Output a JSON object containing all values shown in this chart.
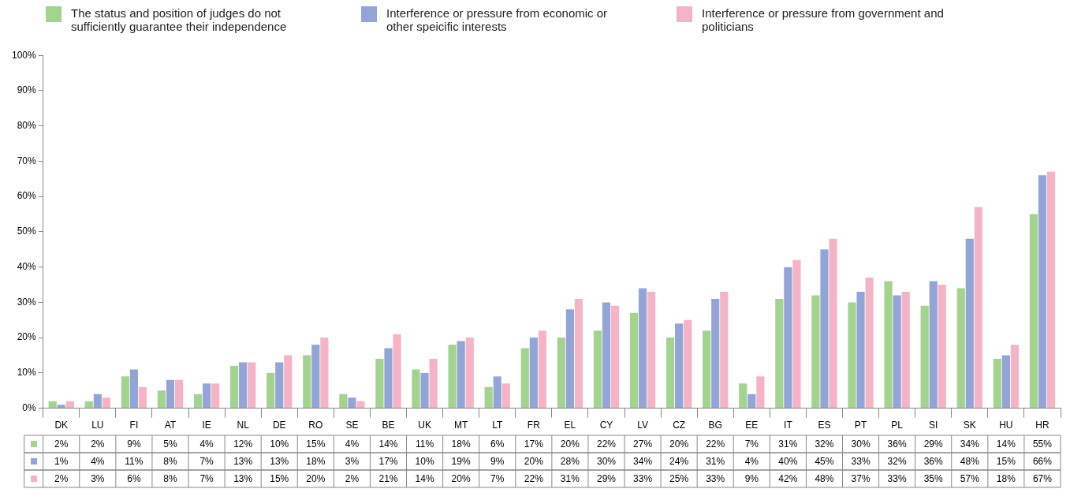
{
  "chart_data": {
    "type": "bar",
    "categories": [
      "DK",
      "LU",
      "FI",
      "AT",
      "IE",
      "NL",
      "DE",
      "RO",
      "SE",
      "BE",
      "UK",
      "MT",
      "LT",
      "FR",
      "EL",
      "CY",
      "LV",
      "CZ",
      "BG",
      "EE",
      "IT",
      "ES",
      "PT",
      "PL",
      "SI",
      "SK",
      "HU",
      "HR"
    ],
    "series": [
      {
        "name": "The status and position of judges do not sufficiently guarantee their independence",
        "color": "#a3d38f",
        "values": [
          2,
          2,
          9,
          5,
          4,
          12,
          10,
          15,
          4,
          14,
          11,
          18,
          6,
          17,
          20,
          22,
          27,
          20,
          22,
          7,
          31,
          32,
          30,
          36,
          29,
          34,
          14,
          55
        ],
        "value_labels": [
          "2%",
          "2%",
          "9%",
          "5%",
          "4%",
          "12%",
          "10%",
          "15%",
          "4%",
          "14%",
          "11%",
          "18%",
          "6%",
          "17%",
          "20%",
          "22%",
          "27%",
          "20%",
          "22%",
          "7%",
          "31%",
          "32%",
          "30%",
          "36%",
          "29%",
          "34%",
          "14%",
          "55%"
        ]
      },
      {
        "name": "Interference or pressure from economic or other speicific interests",
        "color": "#92a5d6",
        "values": [
          1,
          4,
          11,
          8,
          7,
          13,
          13,
          18,
          3,
          17,
          10,
          19,
          9,
          20,
          28,
          30,
          34,
          24,
          31,
          4,
          40,
          45,
          33,
          32,
          36,
          48,
          15,
          66
        ],
        "value_labels": [
          "1%",
          "4%",
          "11%",
          "8%",
          "7%",
          "13%",
          "13%",
          "18%",
          "3%",
          "17%",
          "10%",
          "19%",
          "9%",
          "20%",
          "28%",
          "30%",
          "34%",
          "24%",
          "31%",
          "4%",
          "40%",
          "45%",
          "33%",
          "32%",
          "36%",
          "48%",
          "15%",
          "66%"
        ]
      },
      {
        "name": "Interference or pressure from government and politicians",
        "color": "#f5b3c6",
        "values": [
          2,
          3,
          6,
          8,
          7,
          13,
          15,
          20,
          2,
          21,
          14,
          20,
          7,
          22,
          31,
          29,
          33,
          25,
          33,
          9,
          42,
          48,
          37,
          33,
          35,
          57,
          18,
          67
        ],
        "value_labels": [
          "2%",
          "3%",
          "6%",
          "8%",
          "7%",
          "13%",
          "15%",
          "20%",
          "2%",
          "21%",
          "14%",
          "20%",
          "7%",
          "22%",
          "31%",
          "29%",
          "33%",
          "25%",
          "33%",
          "9%",
          "42%",
          "48%",
          "37%",
          "33%",
          "35%",
          "57%",
          "18%",
          "67%"
        ]
      }
    ],
    "ylim": [
      0,
      100
    ],
    "yticks": [
      {
        "value": 0,
        "label": "0%"
      },
      {
        "value": 10,
        "label": "10%"
      },
      {
        "value": 20,
        "label": "20%"
      },
      {
        "value": 30,
        "label": "30%"
      },
      {
        "value": 40,
        "label": "40%"
      },
      {
        "value": 50,
        "label": "50%"
      },
      {
        "value": 60,
        "label": "60%"
      },
      {
        "value": 70,
        "label": "70%"
      },
      {
        "value": 80,
        "label": "80%"
      },
      {
        "value": 90,
        "label": "90%"
      },
      {
        "value": 100,
        "label": "100%"
      }
    ],
    "legend": "top"
  }
}
